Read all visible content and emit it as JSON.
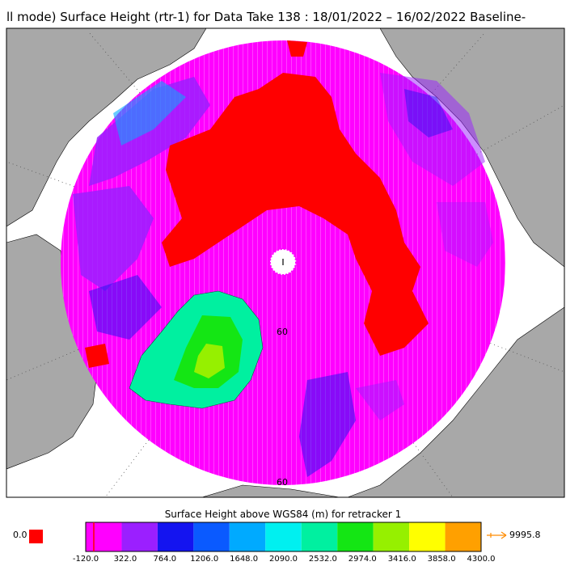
{
  "title": "ll mode) Surface Height (rtr-1) for Data Take 138 : 18/01/2022 – 16/02/2022 Baseline-",
  "colorbar": {
    "title": "Surface Height above WGS84 (m) for retracker 1",
    "ticks": [
      "-120.0",
      "322.0",
      "764.0",
      "1206.0",
      "1648.0",
      "2090.0",
      "2532.0",
      "2974.0",
      "3416.0",
      "3858.0",
      "4300.0"
    ],
    "colors": [
      "#ff00ff",
      "#9b1fff",
      "#1414f0",
      "#0a5aff",
      "#00aaff",
      "#00f0f0",
      "#00f0a0",
      "#14e614",
      "#96f000",
      "#ffff00",
      "#ffa000"
    ],
    "underflow_label": "0.0",
    "underflow_color": "#ff0000",
    "overflow_label": "9995.8",
    "overflow_color": "#ff8c00"
  },
  "map": {
    "lat_labels": [
      "60",
      "60"
    ],
    "land_color": "#a8a8a8",
    "ocean_color": "#ffffff",
    "sea_ice_color": "#ff00ff",
    "high_color": "#ff0000",
    "greenland_colors": [
      "#00f0a0",
      "#14e614",
      "#96f000"
    ]
  }
}
